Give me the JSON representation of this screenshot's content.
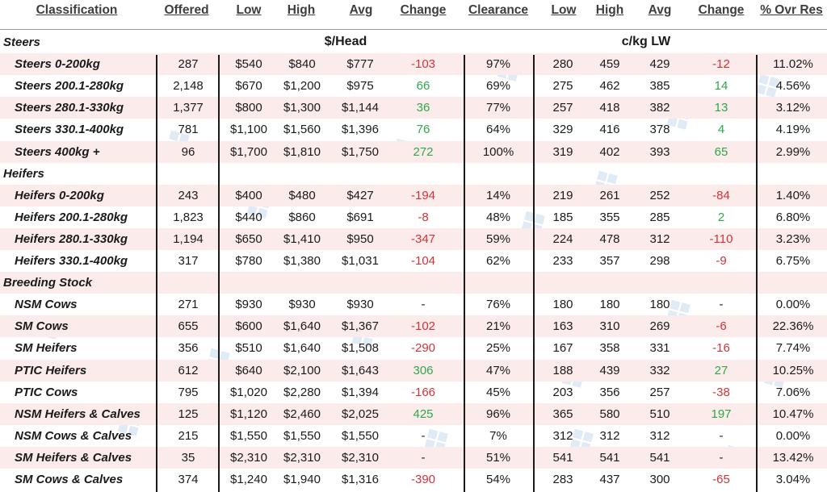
{
  "columns": [
    "Classification",
    "Offered",
    "Low",
    "High",
    "Avg",
    "Change",
    "Clearance",
    "Low",
    "High",
    "Avg",
    "Change",
    "% Ovr Res"
  ],
  "group_heads": {
    "head": "$/Head",
    "lw": "c/kg LW"
  },
  "colors": {
    "negative": "#d0343a",
    "positive": "#2fa84a",
    "shade": "#fbeceb"
  },
  "rows": [
    {
      "type": "section",
      "label": "Steers"
    },
    {
      "type": "data",
      "label": "Steers 0-200kg",
      "offered": "287",
      "low": "$540",
      "high": "$840",
      "avg": "$777",
      "change": "-103",
      "ct": "neg",
      "clearance": "97%",
      "lw_low": "280",
      "lw_high": "459",
      "lw_avg": "429",
      "lw_change": "-12",
      "lct": "neg",
      "ovr": "11.02%"
    },
    {
      "type": "data",
      "label": "Steers 200.1-280kg",
      "offered": "2,148",
      "low": "$670",
      "high": "$1,200",
      "avg": "$975",
      "change": "66",
      "ct": "pos",
      "clearance": "69%",
      "lw_low": "275",
      "lw_high": "462",
      "lw_avg": "385",
      "lw_change": "14",
      "lct": "pos",
      "ovr": "4.56%"
    },
    {
      "type": "data",
      "label": "Steers 280.1-330kg",
      "offered": "1,377",
      "low": "$800",
      "high": "$1,300",
      "avg": "$1,144",
      "change": "36",
      "ct": "pos",
      "clearance": "77%",
      "lw_low": "257",
      "lw_high": "418",
      "lw_avg": "382",
      "lw_change": "13",
      "lct": "pos",
      "ovr": "3.12%"
    },
    {
      "type": "data",
      "label": "Steers 330.1-400kg",
      "offered": "781",
      "low": "$1,100",
      "high": "$1,560",
      "avg": "$1,396",
      "change": "76",
      "ct": "pos",
      "clearance": "64%",
      "lw_low": "329",
      "lw_high": "416",
      "lw_avg": "378",
      "lw_change": "4",
      "lct": "pos",
      "ovr": "4.19%"
    },
    {
      "type": "data",
      "label": "Steers 400kg +",
      "offered": "96",
      "low": "$1,700",
      "high": "$1,810",
      "avg": "$1,750",
      "change": "272",
      "ct": "pos",
      "clearance": "100%",
      "lw_low": "319",
      "lw_high": "402",
      "lw_avg": "393",
      "lw_change": "65",
      "lct": "pos",
      "ovr": "2.99%"
    },
    {
      "type": "section",
      "label": "Heifers"
    },
    {
      "type": "data",
      "label": "Heifers 0-200kg",
      "offered": "243",
      "low": "$400",
      "high": "$480",
      "avg": "$427",
      "change": "-194",
      "ct": "neg",
      "clearance": "14%",
      "lw_low": "219",
      "lw_high": "261",
      "lw_avg": "252",
      "lw_change": "-84",
      "lct": "neg",
      "ovr": "1.40%"
    },
    {
      "type": "data",
      "label": "Heifers 200.1-280kg",
      "offered": "1,823",
      "low": "$440",
      "high": "$860",
      "avg": "$691",
      "change": "-8",
      "ct": "neg",
      "clearance": "48%",
      "lw_low": "185",
      "lw_high": "355",
      "lw_avg": "285",
      "lw_change": "2",
      "lct": "pos",
      "ovr": "6.80%"
    },
    {
      "type": "data",
      "label": "Heifers 280.1-330kg",
      "offered": "1,194",
      "low": "$650",
      "high": "$1,410",
      "avg": "$950",
      "change": "-347",
      "ct": "neg",
      "clearance": "59%",
      "lw_low": "224",
      "lw_high": "478",
      "lw_avg": "312",
      "lw_change": "-110",
      "lct": "neg",
      "ovr": "3.23%"
    },
    {
      "type": "data",
      "label": "Heifers 330.1-400kg",
      "offered": "317",
      "low": "$780",
      "high": "$1,380",
      "avg": "$1,031",
      "change": "-104",
      "ct": "neg",
      "clearance": "62%",
      "lw_low": "233",
      "lw_high": "357",
      "lw_avg": "298",
      "lw_change": "-9",
      "lct": "neg",
      "ovr": "6.75%"
    },
    {
      "type": "section",
      "label": "Breeding Stock"
    },
    {
      "type": "data",
      "label": "NSM Cows",
      "offered": "271",
      "low": "$930",
      "high": "$930",
      "avg": "$930",
      "change": "-",
      "ct": "dash",
      "clearance": "76%",
      "lw_low": "180",
      "lw_high": "180",
      "lw_avg": "180",
      "lw_change": "-",
      "lct": "dash",
      "ovr": "0.00%"
    },
    {
      "type": "data",
      "label": "SM Cows",
      "offered": "655",
      "low": "$600",
      "high": "$1,640",
      "avg": "$1,367",
      "change": "-102",
      "ct": "neg",
      "clearance": "21%",
      "lw_low": "163",
      "lw_high": "310",
      "lw_avg": "269",
      "lw_change": "-6",
      "lct": "neg",
      "ovr": "22.36%"
    },
    {
      "type": "data",
      "label": "SM Heifers",
      "offered": "356",
      "low": "$510",
      "high": "$1,640",
      "avg": "$1,508",
      "change": "-290",
      "ct": "neg",
      "clearance": "25%",
      "lw_low": "167",
      "lw_high": "358",
      "lw_avg": "331",
      "lw_change": "-16",
      "lct": "neg",
      "ovr": "7.74%"
    },
    {
      "type": "data",
      "label": "PTIC Heifers",
      "offered": "612",
      "low": "$640",
      "high": "$2,100",
      "avg": "$1,643",
      "change": "306",
      "ct": "pos",
      "clearance": "47%",
      "lw_low": "188",
      "lw_high": "439",
      "lw_avg": "332",
      "lw_change": "27",
      "lct": "pos",
      "ovr": "10.25%"
    },
    {
      "type": "data",
      "label": "PTIC Cows",
      "offered": "795",
      "low": "$1,020",
      "high": "$2,280",
      "avg": "$1,394",
      "change": "-166",
      "ct": "neg",
      "clearance": "45%",
      "lw_low": "203",
      "lw_high": "356",
      "lw_avg": "257",
      "lw_change": "-38",
      "lct": "neg",
      "ovr": "7.06%"
    },
    {
      "type": "data",
      "label": "NSM Heifers & Calves",
      "offered": "125",
      "low": "$1,120",
      "high": "$2,460",
      "avg": "$2,025",
      "change": "425",
      "ct": "pos",
      "clearance": "96%",
      "lw_low": "365",
      "lw_high": "580",
      "lw_avg": "510",
      "lw_change": "197",
      "lct": "pos",
      "ovr": "10.47%"
    },
    {
      "type": "data",
      "label": "NSM Cows & Calves",
      "offered": "215",
      "low": "$1,550",
      "high": "$1,550",
      "avg": "$1,550",
      "change": "-",
      "ct": "dash",
      "clearance": "7%",
      "lw_low": "312",
      "lw_high": "312",
      "lw_avg": "312",
      "lw_change": "-",
      "lct": "dash",
      "ovr": "0.00%"
    },
    {
      "type": "data",
      "label": "SM Heifers & Calves",
      "offered": "35",
      "low": "$2,310",
      "high": "$2,310",
      "avg": "$2,310",
      "change": "-",
      "ct": "dash",
      "clearance": "51%",
      "lw_low": "541",
      "lw_high": "541",
      "lw_avg": "541",
      "lw_change": "-",
      "lct": "dash",
      "ovr": "13.42%"
    },
    {
      "type": "data",
      "label": "SM Cows & Calves",
      "offered": "374",
      "low": "$1,240",
      "high": "$1,940",
      "avg": "$1,316",
      "change": "-390",
      "ct": "neg",
      "clearance": "54%",
      "lw_low": "283",
      "lw_high": "437",
      "lw_avg": "300",
      "lw_change": "-65",
      "lct": "neg",
      "ovr": "3.04%"
    }
  ]
}
